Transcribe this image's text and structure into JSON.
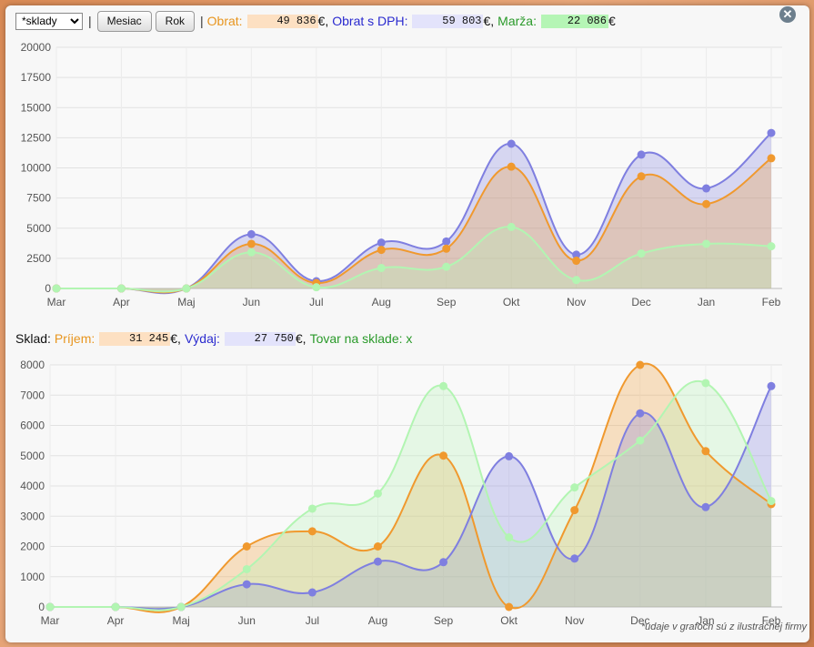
{
  "toolbar": {
    "select_value": "*sklady",
    "sep1": "|",
    "btn_month": "Mesiac",
    "btn_year": "Rok",
    "sep2": "|",
    "obrat_label": "Obrat:",
    "obrat_value": "49 836",
    "obrat_dph_label": "Obrat s DPH:",
    "obrat_dph_value": "59 803",
    "marza_label": "Marža:",
    "marza_value": "22 086",
    "currency": "€",
    "comma_currency": "€,"
  },
  "sklad": {
    "label": "Sklad:",
    "prijem_label": "Príjem:",
    "prijem_value": "31 245",
    "vydaj_label": "Výdaj:",
    "vydaj_value": "27 750",
    "tovar_label": "Tovar na sklade: x"
  },
  "close_icon": "close-icon",
  "footnote": "*údaje v grafoch sú z ilustračnej firmy",
  "colors": {
    "orange": "#f0992e",
    "blue": "#7f7fe0",
    "green": "#b2f5b2"
  },
  "chart_data": [
    {
      "type": "area",
      "categories": [
        "Mar",
        "Apr",
        "Maj",
        "Jun",
        "Jul",
        "Aug",
        "Sep",
        "Okt",
        "Nov",
        "Dec",
        "Jan",
        "Feb"
      ],
      "ylim": [
        0,
        20000
      ],
      "yticks": [
        0,
        2500,
        5000,
        7500,
        10000,
        12500,
        15000,
        17500,
        20000
      ],
      "grid": true,
      "series": [
        {
          "name": "Obrat s DPH",
          "color": "#7f7fe0",
          "values": [
            0,
            0,
            0,
            4500,
            600,
            3800,
            3900,
            12000,
            2800,
            11100,
            8300,
            12900
          ]
        },
        {
          "name": "Obrat",
          "color": "#f0992e",
          "values": [
            0,
            0,
            0,
            3700,
            450,
            3200,
            3300,
            10100,
            2300,
            9300,
            7000,
            10800
          ]
        },
        {
          "name": "Marža",
          "color": "#b2f5b2",
          "values": [
            0,
            0,
            0,
            3000,
            100,
            1700,
            1800,
            5100,
            700,
            2900,
            3700,
            3500
          ]
        }
      ]
    },
    {
      "type": "area",
      "categories": [
        "Mar",
        "Apr",
        "Maj",
        "Jun",
        "Jul",
        "Aug",
        "Sep",
        "Okt",
        "Nov",
        "Dec",
        "Jan",
        "Feb"
      ],
      "ylim": [
        0,
        8000
      ],
      "yticks": [
        0,
        1000,
        2000,
        3000,
        4000,
        5000,
        6000,
        7000,
        8000
      ],
      "grid": true,
      "series": [
        {
          "name": "Príjem",
          "color": "#f0992e",
          "values": [
            0,
            0,
            0,
            2000,
            2500,
            2000,
            5000,
            0,
            3200,
            8000,
            5150,
            3400
          ]
        },
        {
          "name": "Výdaj",
          "color": "#7f7fe0",
          "values": [
            0,
            0,
            0,
            750,
            480,
            1500,
            1480,
            4980,
            1600,
            6400,
            3300,
            7300
          ]
        },
        {
          "name": "Tovar na sklade",
          "color": "#b2f5b2",
          "values": [
            0,
            0,
            0,
            1250,
            3250,
            3750,
            7300,
            2300,
            3950,
            5500,
            7400,
            3500
          ]
        }
      ]
    }
  ]
}
